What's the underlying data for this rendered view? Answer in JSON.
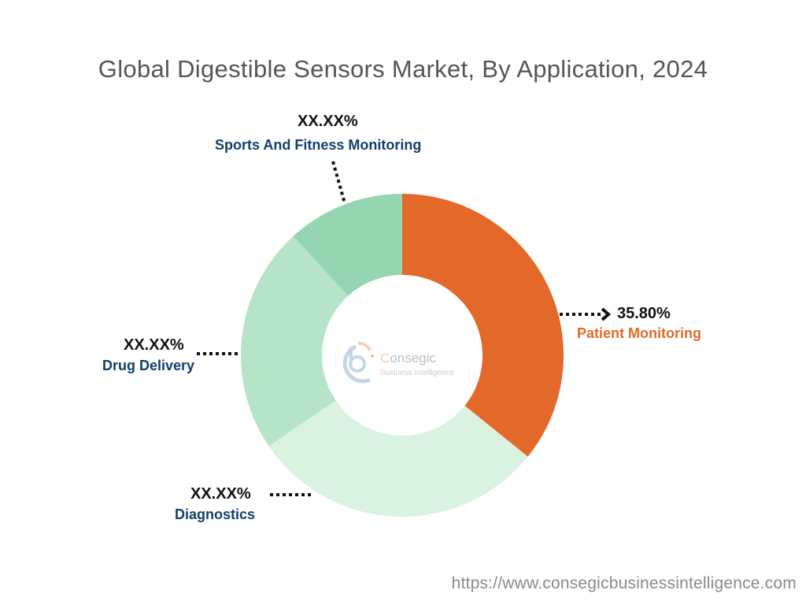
{
  "title": "Global Digestible Sensors Market, By Application, 2024",
  "footer": {
    "url": "https://www.consegicbusinessintelligence.com"
  },
  "watermark": {
    "line1": "Consegic",
    "line2": "Business Intelligence",
    "icon": "cbi-logo-icon"
  },
  "labels": {
    "patient_monitoring": {
      "pct": "35.80%",
      "name": "Patient Monitoring"
    },
    "diagnostics": {
      "pct": "XX.XX%",
      "name": "Diagnostics"
    },
    "drug_delivery": {
      "pct": "XX.XX%",
      "name": "Drug Delivery"
    },
    "sports": {
      "pct": "XX.XX%",
      "name": "Sports And Fitness Monitoring"
    }
  },
  "colors": {
    "patient_monitoring": "#e2692a",
    "diagnostics": "#daf2e0",
    "drug_delivery": "#b5e4c8",
    "sports": "#96d5b2",
    "label_dark_blue": "#123f6b",
    "accent_orange": "#e2692a"
  },
  "chart_data": {
    "type": "pie",
    "subtype": "donut",
    "title": "Global Digestible Sensors Market, By Application, 2024",
    "categories": [
      "Patient Monitoring",
      "Diagnostics",
      "Drug Delivery",
      "Sports And Fitness Monitoring"
    ],
    "values": [
      35.8,
      29.7,
      22.7,
      11.8
    ],
    "displayed_labels": [
      "35.80%",
      "XX.XX%",
      "XX.XX%",
      "XX.XX%"
    ],
    "colors": [
      "#e2692a",
      "#daf2e0",
      "#b5e4c8",
      "#96d5b2"
    ],
    "start_angle": "12 o'clock, clockwise",
    "legend": "none (callout labels)"
  }
}
